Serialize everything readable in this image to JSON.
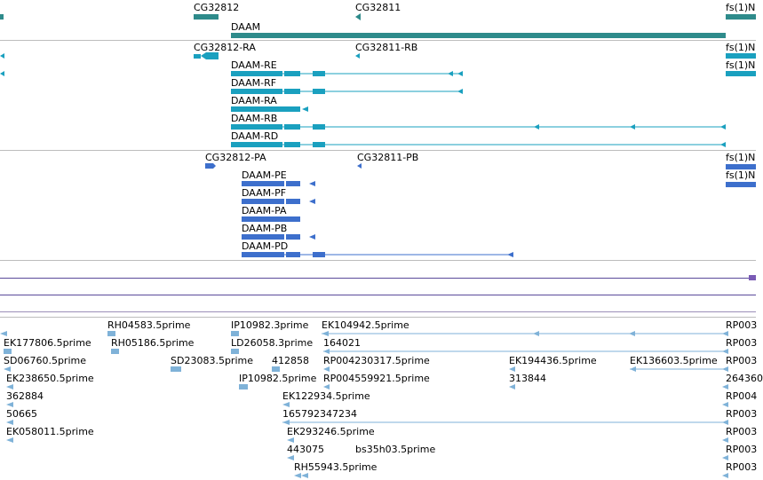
{
  "colors": {
    "gene": "#2e8b8b",
    "transcript": "#1aa0bf",
    "protein": "#3d6fcc",
    "track_line": "#5a4a9a",
    "est": "#7fb2d8",
    "separator": "#bdbdbd"
  },
  "gene_track": {
    "labels": [
      "CG32812",
      "CG32811",
      "DAAM",
      "fs(1)N"
    ]
  },
  "transcript_track": {
    "labels": [
      "CG32812-RA",
      "CG32811-RB",
      "fs(1)N",
      "DAAM-RE",
      "fs(1)N",
      "DAAM-RF",
      "DAAM-RA",
      "DAAM-RB",
      "DAAM-RD"
    ]
  },
  "protein_track": {
    "labels": [
      "CG32812-PA",
      "CG32811-PB",
      "fs(1)N",
      "DAAM-PE",
      "fs(1)N",
      "DAAM-PF",
      "DAAM-PA",
      "DAAM-PB",
      "DAAM-PD"
    ]
  },
  "est_track": {
    "labels": [
      "RH04583.5prime",
      "IP10982.3prime",
      "EK104942.5prime",
      "RP003",
      "EK177806.5prime",
      "RH05186.5prime",
      "LD26058.3prime",
      "164021",
      "RP003",
      "SD06760.5prime",
      "SD23083.5prime",
      "412858",
      "RP004230317.5prime",
      "EK194436.5prime",
      "EK136603.5prime",
      "RP003",
      "EK238650.5prime",
      "IP10982.5prime",
      "RP004559921.5prime",
      "313844",
      "264360",
      "362884",
      "EK122934.5prime",
      "RP004",
      "50665",
      "165792347234",
      "RP003",
      "EK058011.5prime",
      "EK293246.5prime",
      "RP003",
      "443075",
      "bs35h03.5prime",
      "RP003",
      "RH55943.5prime",
      "RP003"
    ]
  }
}
